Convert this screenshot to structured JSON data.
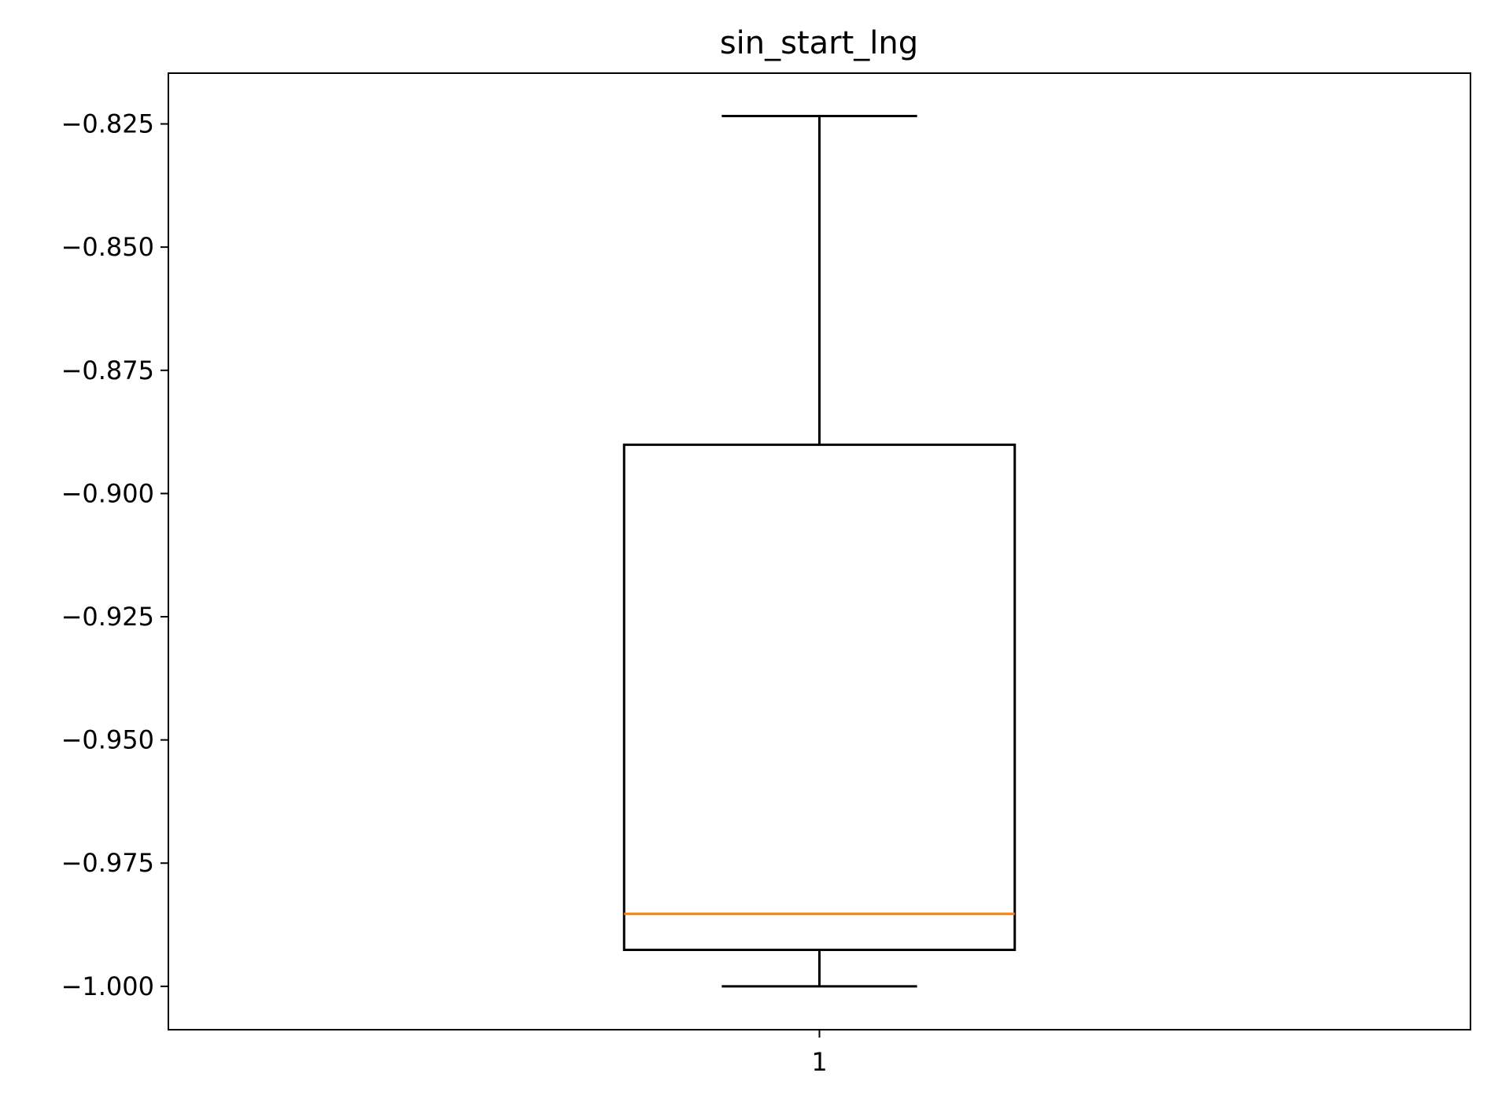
{
  "chart_data": {
    "type": "box",
    "title": "sin_start_lng",
    "xlabel": "",
    "ylabel": "",
    "categories": [
      "1"
    ],
    "boxes": [
      {
        "category": "1",
        "whisker_low": -1.0,
        "q1": -0.9926,
        "median": -0.9853,
        "q3": -0.8901,
        "whisker_high": -0.8234
      }
    ],
    "ylim": [
      -1.0088,
      -0.8147
    ],
    "yticks": [
      -0.825,
      -0.85,
      -0.875,
      -0.9,
      -0.925,
      -0.95,
      -0.975,
      -1.0
    ],
    "ytick_labels": [
      "−0.825",
      "−0.850",
      "−0.875",
      "−0.900",
      "−0.925",
      "−0.950",
      "−0.975",
      "−1.000"
    ],
    "grid": false,
    "colors": {
      "box": "#000000",
      "median": "#ff7f0e"
    }
  }
}
